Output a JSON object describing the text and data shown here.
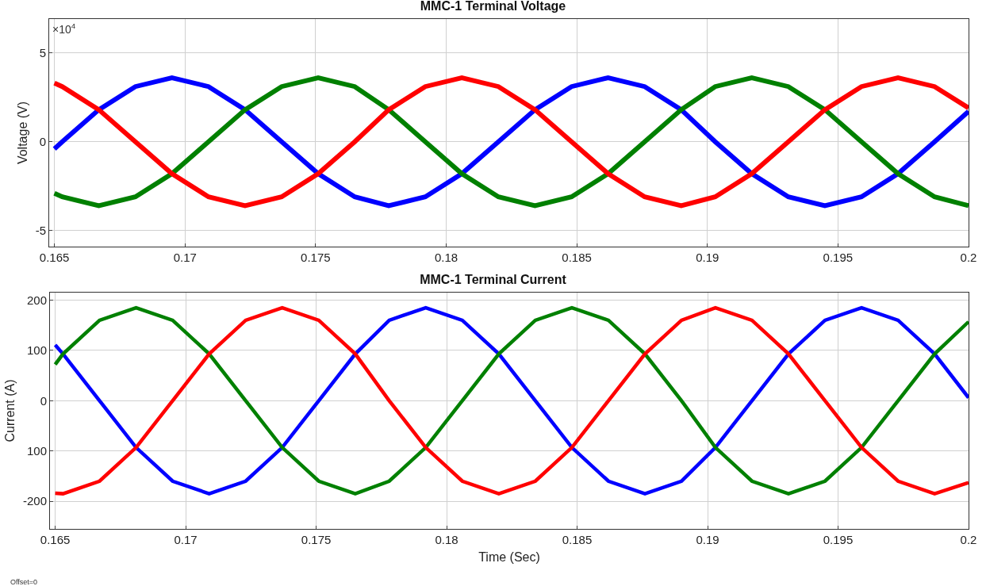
{
  "chart_data": [
    {
      "type": "line",
      "title": "MMC-1 Terminal Voltage",
      "ylabel": "Voltage (V)",
      "annotations": [
        "×10$^{4}$"
      ],
      "x": [
        0.165,
        0.1653,
        0.1667,
        0.1681,
        0.1695,
        0.1709,
        0.1723,
        0.1737,
        0.1751,
        0.1765,
        0.1778,
        0.1792,
        0.1806,
        0.182,
        0.1834,
        0.1848,
        0.1862,
        0.1876,
        0.189,
        0.1903,
        0.1917,
        0.1931,
        0.1945,
        0.1959,
        0.1973,
        0.1987,
        0.2
      ],
      "series": [
        {
          "color": "#0000ff",
          "values": [
            -0.4,
            0,
            1.8,
            3.1,
            3.6,
            3.1,
            1.8,
            0,
            -1.8,
            -3.1,
            -3.6,
            -3.1,
            -1.8,
            0,
            1.8,
            3.1,
            3.6,
            3.1,
            1.8,
            0,
            -1.8,
            -3.1,
            -3.6,
            -3.1,
            -1.8,
            0,
            1.7
          ]
        },
        {
          "color": "#008000",
          "values": [
            -2.9,
            -3.1,
            -3.6,
            -3.1,
            -1.8,
            0,
            1.8,
            3.1,
            3.6,
            3.1,
            1.8,
            0,
            -1.8,
            -3.1,
            -3.6,
            -3.1,
            -1.8,
            0,
            1.8,
            3.1,
            3.6,
            3.1,
            1.8,
            0,
            -1.8,
            -3.1,
            -3.6
          ]
        },
        {
          "color": "#ff0000",
          "values": [
            3.3,
            3.1,
            1.8,
            0,
            -1.8,
            -3.1,
            -3.6,
            -3.1,
            -1.8,
            0,
            1.8,
            3.1,
            3.6,
            3.1,
            1.8,
            0,
            -1.8,
            -3.1,
            -3.6,
            -3.1,
            -1.8,
            0,
            1.8,
            3.1,
            3.6,
            3.1,
            1.9
          ]
        }
      ],
      "xlim": [
        0.1648,
        0.2
      ],
      "xticks": [
        0.165,
        0.17,
        0.175,
        0.18,
        0.185,
        0.19,
        0.195,
        0.2
      ],
      "ylim": [
        -5.9,
        6.9
      ],
      "yticks": [
        -5,
        0,
        5
      ],
      "grid": true,
      "line_style": "solid"
    },
    {
      "type": "line",
      "title": "MMC-1 Terminal Current",
      "ylabel": "Current (A)",
      "xlabel": "Time (Sec)",
      "annotations": [
        "Offset=0"
      ],
      "x": [
        0.165,
        0.1653,
        0.1667,
        0.1681,
        0.1695,
        0.1709,
        0.1723,
        0.1737,
        0.1751,
        0.1765,
        0.1778,
        0.1792,
        0.1806,
        0.182,
        0.1834,
        0.1848,
        0.1862,
        0.1876,
        0.189,
        0.1903,
        0.1917,
        0.1931,
        0.1945,
        0.1959,
        0.1973,
        0.1987,
        0.2
      ],
      "series": [
        {
          "color": "#0000ff",
          "values": [
            111,
            93,
            0,
            -93,
            -160,
            -185,
            -160,
            -93,
            0,
            93,
            160,
            185,
            160,
            93,
            0,
            -93,
            -160,
            -185,
            -160,
            -93,
            0,
            93,
            160,
            185,
            160,
            93,
            6
          ]
        },
        {
          "color": "#008000",
          "values": [
            72,
            93,
            160,
            185,
            160,
            93,
            0,
            -93,
            -160,
            -185,
            -160,
            -93,
            0,
            93,
            160,
            185,
            160,
            93,
            0,
            -93,
            -160,
            -185,
            -160,
            -93,
            0,
            93,
            157
          ]
        },
        {
          "color": "#ff0000",
          "values": [
            -184,
            -185,
            -160,
            -93,
            0,
            93,
            160,
            185,
            160,
            93,
            0,
            -93,
            -160,
            -185,
            -160,
            -93,
            0,
            93,
            160,
            185,
            160,
            93,
            0,
            -93,
            -160,
            -185,
            -163
          ]
        }
      ],
      "xlim": [
        0.1648,
        0.2
      ],
      "xticks": [
        0.165,
        0.17,
        0.175,
        0.18,
        0.185,
        0.19,
        0.195,
        0.2
      ],
      "ylim": [
        -255,
        215
      ],
      "yticks": [
        -200,
        {
          "value": -100,
          "label": "100"
        },
        0,
        100,
        200
      ],
      "grid": true,
      "line_style": "solid"
    }
  ]
}
